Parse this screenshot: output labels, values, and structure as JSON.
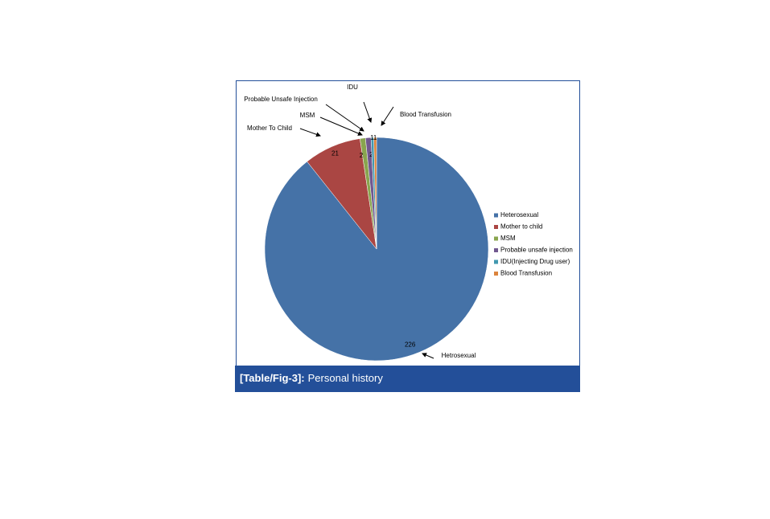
{
  "chart_data": {
    "type": "pie",
    "categories": [
      "Heterosexual",
      "Mother to child",
      "MSM",
      "Probable unsafe injection",
      "IDU(Injecting Drug user)",
      "Blood Transfusion"
    ],
    "values": [
      226,
      21,
      2,
      2,
      1,
      1
    ],
    "colors": [
      "#4572a7",
      "#aa4643",
      "#89a54e",
      "#71588f",
      "#4198af",
      "#db843d"
    ],
    "annotations": [
      "Hetrosexual",
      "Mother To Child",
      "MSM",
      "Probable Unsafe Injection",
      "IDU",
      "Blood Transfusion"
    ],
    "legend": "right"
  },
  "caption": {
    "label": "[Table/Fig-3]:",
    "text": "Personal history"
  }
}
